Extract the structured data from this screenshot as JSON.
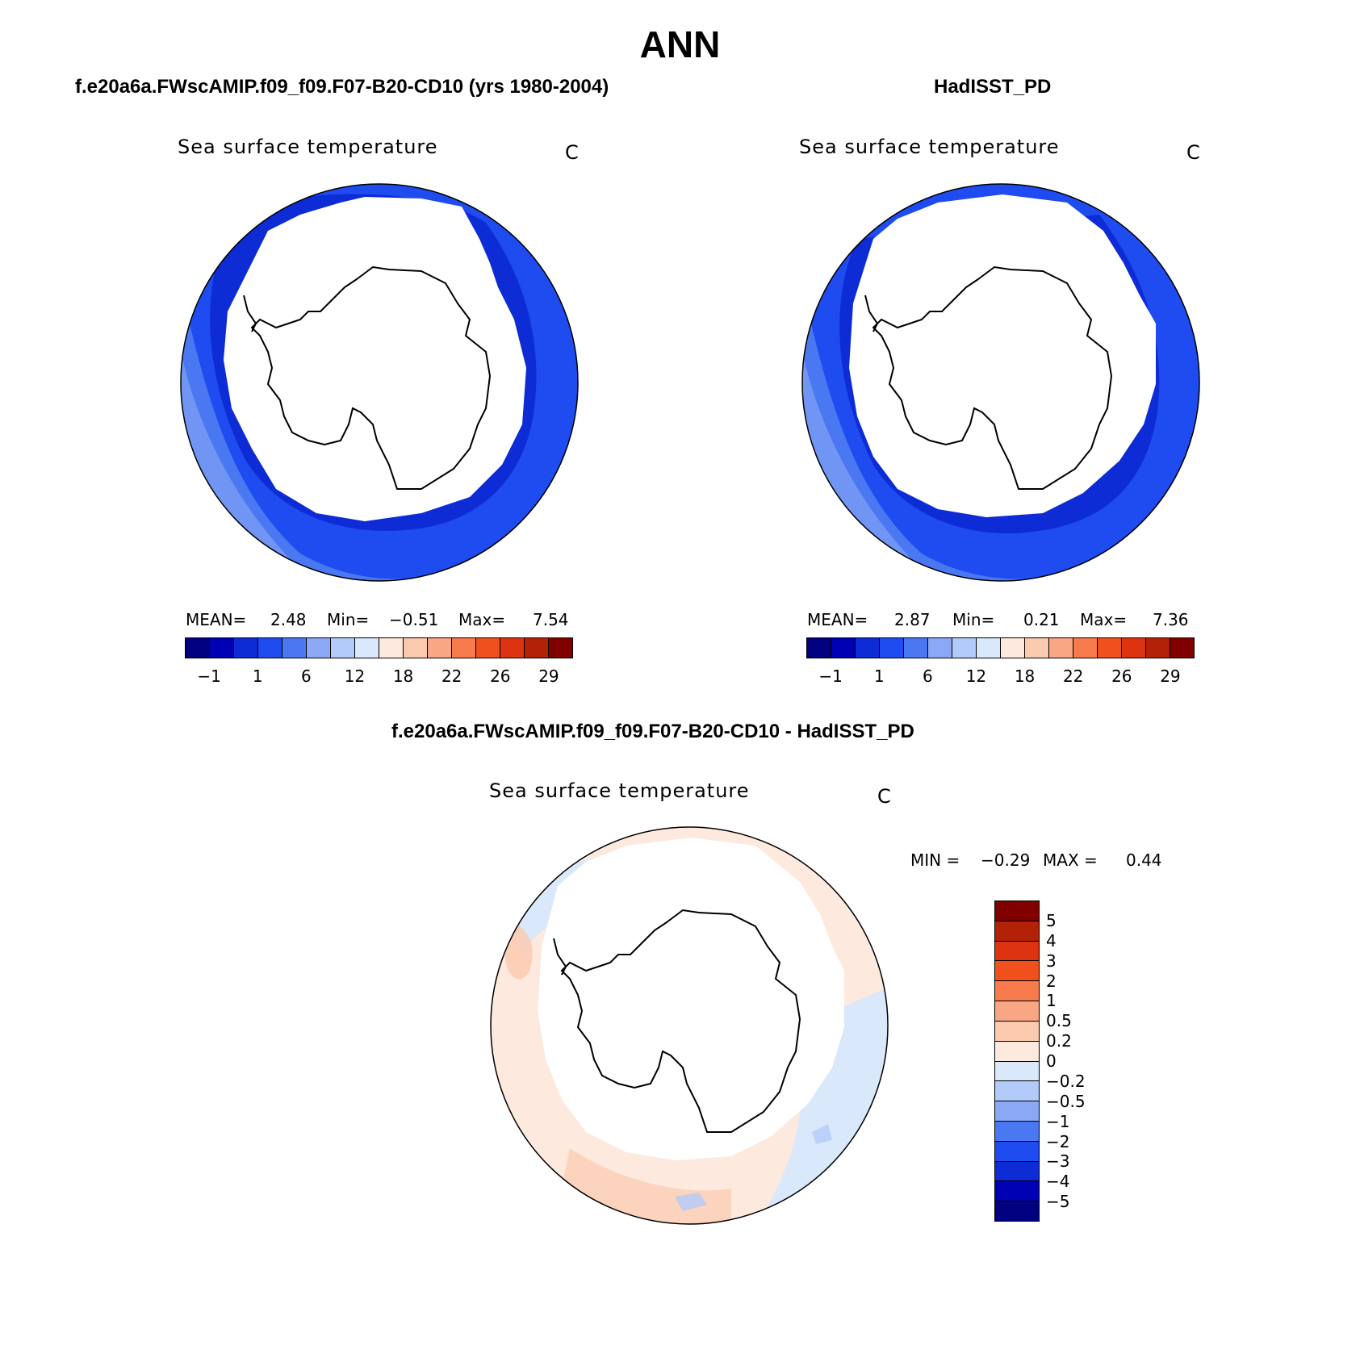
{
  "season": "ANN",
  "panels": {
    "model": {
      "case_title": "f.e20a6a.FWscAMIP.f09_f09.F07-B20-CD10 (yrs 1980-2004)",
      "field": "Sea surface temperature",
      "units": "C",
      "mean_label": "MEAN=",
      "mean": "2.48",
      "min_label": "Min=",
      "min": "−0.51",
      "max_label": "Max=",
      "max": "7.54"
    },
    "obs": {
      "case_title": "HadISST_PD",
      "field": "Sea surface temperature",
      "units": "C",
      "mean_label": "MEAN=",
      "mean": "2.87",
      "min_label": "Min=",
      "min": "0.21",
      "max_label": "Max=",
      "max": "7.36"
    },
    "diff": {
      "case_title": "f.e20a6a.FWscAMIP.f09_f09.F07-B20-CD10 - HadISST_PD",
      "field": "Sea surface temperature",
      "units": "C",
      "min_label": "MIN =",
      "min": "−0.29",
      "max_label": "MAX =",
      "max": "0.44"
    }
  },
  "colorbar_abs": {
    "colors": [
      "#000080",
      "#0000b4",
      "#0d2cd6",
      "#1e4cf0",
      "#4a78f2",
      "#8aa8f5",
      "#b3cbfa",
      "#d9e9fb",
      "#fde9dd",
      "#fbc9ae",
      "#f8a684",
      "#f77b4d",
      "#f0501c",
      "#dd3311",
      "#b32106",
      "#800000"
    ],
    "ticks": [
      "−1",
      "1",
      "6",
      "12",
      "18",
      "22",
      "26",
      "29"
    ]
  },
  "colorbar_diff": {
    "colors": [
      "#800000",
      "#b32106",
      "#dd3311",
      "#f0501c",
      "#f77b4d",
      "#f8a684",
      "#fbc9ae",
      "#fde9dd",
      "#d9e9fb",
      "#b3cbfa",
      "#8aa8f5",
      "#4a78f2",
      "#1e4cf0",
      "#0d2cd6",
      "#0000b4",
      "#000080"
    ],
    "ticks": [
      "5",
      "4",
      "3",
      "2",
      "1",
      "0.5",
      "0.2",
      "0",
      "−0.2",
      "−0.5",
      "−1",
      "−2",
      "−3",
      "−4",
      "−5"
    ]
  },
  "field_colors": {
    "ocean_model": "#1e4cf0",
    "ocean_obs": "#1e4cf0",
    "ocean_light": "#4a78f2",
    "ocean_dark": "#0d2cd6",
    "diff_warm": "#fde9dd",
    "diff_warm2": "#fbc9ae",
    "diff_cool": "#d9e9fb",
    "diff_cool2": "#b3cbfa"
  }
}
